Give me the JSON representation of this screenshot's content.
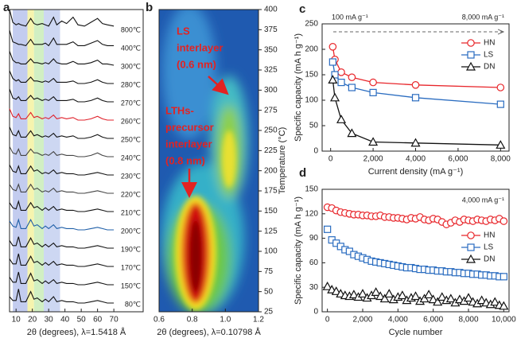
{
  "chart_data": [
    {
      "type": "waterfall",
      "label": "a",
      "xlabel": "2θ (degrees), λ=1.5418 Å",
      "xlim": [
        6,
        88
      ],
      "xticks": [
        10,
        20,
        30,
        40,
        50,
        60,
        70
      ],
      "bands": [
        {
          "range": [
            8,
            17
          ],
          "color": "#b9c3ec"
        },
        {
          "range": [
            17,
            21
          ],
          "color": "#f4f2a0"
        },
        {
          "range": [
            21,
            27
          ],
          "color": "#c9ecb8"
        },
        {
          "range": [
            27,
            37
          ],
          "color": "#c4d0f0"
        }
      ],
      "x": [
        6,
        8,
        10,
        11.5,
        13,
        16,
        19,
        21,
        23,
        26,
        28,
        30,
        33,
        35,
        38,
        41,
        45,
        48,
        52,
        56,
        60,
        63,
        66,
        70
      ],
      "series": [
        {
          "name": "800℃",
          "color": "#111111",
          "values": [
            20,
            10,
            8,
            9,
            8,
            7,
            13,
            9,
            8,
            9,
            8,
            7,
            14,
            8,
            11,
            9,
            14,
            8,
            7,
            10,
            13,
            9,
            8,
            7
          ]
        },
        {
          "name": "400℃",
          "color": "#111111",
          "values": [
            18,
            9,
            8,
            7,
            7,
            6,
            11,
            7,
            7,
            7,
            8,
            6,
            12,
            7,
            7,
            7,
            9,
            6,
            6,
            8,
            10,
            7,
            6,
            6
          ]
        },
        {
          "name": "300℃",
          "color": "#111111",
          "values": [
            16,
            9,
            7,
            7,
            6,
            6,
            10,
            7,
            7,
            6,
            7,
            6,
            10,
            7,
            6,
            6,
            8,
            6,
            6,
            7,
            9,
            6,
            6,
            5
          ]
        },
        {
          "name": "280℃",
          "color": "#111111",
          "values": [
            15,
            9,
            7,
            8,
            6,
            6,
            10,
            7,
            7,
            6,
            7,
            6,
            9,
            6,
            6,
            6,
            7,
            5,
            5,
            6,
            8,
            6,
            5,
            5
          ]
        },
        {
          "name": "270℃",
          "color": "#111111",
          "values": [
            15,
            8,
            7,
            9,
            6,
            6,
            10,
            7,
            8,
            6,
            7,
            6,
            9,
            6,
            6,
            6,
            7,
            5,
            5,
            6,
            8,
            6,
            5,
            5
          ]
        },
        {
          "name": "260℃",
          "color": "#e0202a",
          "values": [
            14,
            8,
            7,
            10,
            6,
            6,
            11,
            7,
            8,
            6,
            7,
            6,
            9,
            6,
            7,
            6,
            7,
            5,
            5,
            6,
            8,
            6,
            5,
            5
          ]
        },
        {
          "name": "250℃",
          "color": "#111111",
          "values": [
            14,
            8,
            7,
            11,
            6,
            6,
            11,
            7,
            8,
            6,
            7,
            6,
            9,
            6,
            7,
            6,
            7,
            5,
            5,
            6,
            8,
            6,
            5,
            5
          ]
        },
        {
          "name": "240℃",
          "color": "#444444",
          "values": [
            13,
            8,
            7,
            11,
            6,
            6,
            11,
            8,
            8,
            6,
            7,
            6,
            9,
            6,
            7,
            6,
            6,
            5,
            5,
            6,
            8,
            6,
            5,
            5
          ]
        },
        {
          "name": "230℃",
          "color": "#111111",
          "values": [
            13,
            8,
            7,
            12,
            6,
            6,
            12,
            8,
            9,
            6,
            7,
            6,
            9,
            6,
            7,
            6,
            6,
            5,
            5,
            6,
            7,
            6,
            5,
            5
          ]
        },
        {
          "name": "220℃",
          "color": "#444444",
          "values": [
            12,
            8,
            7,
            12,
            6,
            6,
            12,
            8,
            9,
            6,
            7,
            6,
            9,
            6,
            7,
            6,
            6,
            5,
            5,
            6,
            7,
            6,
            5,
            5
          ]
        },
        {
          "name": "210℃",
          "color": "#111111",
          "values": [
            12,
            8,
            7,
            13,
            6,
            6,
            12,
            8,
            9,
            6,
            8,
            6,
            9,
            6,
            7,
            6,
            6,
            5,
            5,
            6,
            7,
            6,
            5,
            5
          ]
        },
        {
          "name": "200℃",
          "color": "#1f5fa8",
          "values": [
            12,
            8,
            7,
            13,
            6,
            6,
            13,
            8,
            9,
            6,
            8,
            6,
            9,
            6,
            7,
            6,
            6,
            5,
            5,
            6,
            7,
            6,
            5,
            5
          ]
        },
        {
          "name": "190℃",
          "color": "#111111",
          "values": [
            11,
            7,
            7,
            14,
            6,
            6,
            13,
            8,
            9,
            6,
            8,
            6,
            9,
            6,
            7,
            6,
            6,
            5,
            5,
            6,
            7,
            6,
            5,
            5
          ]
        },
        {
          "name": "170℃",
          "color": "#111111",
          "values": [
            11,
            7,
            7,
            15,
            6,
            6,
            13,
            8,
            9,
            6,
            8,
            6,
            9,
            6,
            7,
            6,
            6,
            5,
            5,
            6,
            7,
            6,
            5,
            5
          ]
        },
        {
          "name": "150℃",
          "color": "#111111",
          "values": [
            11,
            7,
            7,
            15,
            6,
            6,
            14,
            8,
            9,
            6,
            8,
            6,
            9,
            6,
            7,
            6,
            6,
            5,
            5,
            6,
            7,
            6,
            5,
            5
          ]
        },
        {
          "name": "80℃",
          "color": "#111111",
          "values": [
            10,
            7,
            7,
            16,
            6,
            6,
            14,
            8,
            9,
            6,
            8,
            6,
            10,
            6,
            7,
            6,
            6,
            5,
            5,
            6,
            7,
            6,
            5,
            5
          ]
        }
      ]
    },
    {
      "type": "contour",
      "label": "b",
      "xlabel": "2θ (degrees), λ=0.10798 Å",
      "ylabel": "Temperature (°C)",
      "xlim": [
        0.6,
        1.2
      ],
      "xticks": [
        0.6,
        0.8,
        {
          "value": 1,
          "label": "1.0"
        },
        1.2
      ],
      "ylim": [
        25,
        400
      ],
      "yticks": [
        25,
        50,
        75,
        100,
        125,
        150,
        175,
        200,
        225,
        250,
        275,
        300,
        325,
        350,
        375,
        400
      ],
      "yaxis_side": "right",
      "annotations": [
        [
          "LS",
          "interlayer",
          "(0.6 nm)"
        ],
        [
          "LTHs-",
          "precursor",
          "interlayer",
          "(0.8 nm)"
        ]
      ]
    },
    {
      "type": "line",
      "label": "c",
      "xlabel": "Current density (mA g⁻¹)",
      "ylabel": "Specific capacity (mA h g⁻¹)",
      "xlim": [
        -400,
        8400
      ],
      "xticks": [
        0,
        {
          "value": 2000,
          "label": "2,000"
        },
        {
          "value": 4000,
          "label": "4,000"
        },
        {
          "value": 6000,
          "label": "6,000"
        },
        {
          "value": 8000,
          "label": "8,000"
        }
      ],
      "ylim": [
        0,
        250
      ],
      "yticks": [
        0,
        50,
        100,
        150,
        200,
        250
      ],
      "legend": "upper right",
      "lines": true,
      "annotations": [
        "100 mA g⁻¹",
        "8,000 mA g⁻¹"
      ],
      "x": [
        100,
        200,
        500,
        1000,
        2000,
        4000,
        8000
      ],
      "series": [
        {
          "name": "HN",
          "color": "#e8262b",
          "marker": "circle",
          "values": [
            205,
            180,
            155,
            145,
            135,
            130,
            125
          ]
        },
        {
          "name": "LS",
          "color": "#2a6cc0",
          "marker": "square",
          "values": [
            175,
            150,
            135,
            125,
            115,
            105,
            92
          ]
        },
        {
          "name": "DN",
          "color": "#111111",
          "marker": "triangle",
          "values": [
            140,
            105,
            62,
            35,
            18,
            16,
            12
          ]
        }
      ]
    },
    {
      "type": "line",
      "label": "d",
      "xlabel": "Cycle number",
      "ylabel": "Specific capacity (mA h g⁻¹)",
      "xlim": [
        -300,
        10300
      ],
      "xticks": [
        0,
        {
          "value": 2000,
          "label": "2,000"
        },
        {
          "value": 4000,
          "label": "4,000"
        },
        {
          "value": 6000,
          "label": "6,000"
        },
        {
          "value": 8000,
          "label": "8,000"
        },
        {
          "value": 10000,
          "label": "10,000"
        }
      ],
      "ylim": [
        0,
        150
      ],
      "yticks": [
        0,
        30,
        60,
        90,
        120,
        150
      ],
      "legend": "center right",
      "lines": false,
      "annotations": [
        "4,000 mA g⁻¹"
      ],
      "x": [
        0,
        250,
        500,
        750,
        1000,
        1250,
        1500,
        1750,
        2000,
        2250,
        2500,
        2750,
        3000,
        3250,
        3500,
        3750,
        4000,
        4250,
        4500,
        4750,
        5000,
        5250,
        5500,
        5750,
        6000,
        6250,
        6500,
        6750,
        7000,
        7250,
        7500,
        7750,
        8000,
        8250,
        8500,
        8750,
        9000,
        9250,
        9500,
        9750,
        10000
      ],
      "series": [
        {
          "name": "HN",
          "color": "#e8262b",
          "marker": "circle",
          "values": [
            128,
            127,
            124,
            122,
            121,
            120,
            119,
            119,
            118,
            118,
            117,
            117,
            118,
            116,
            116,
            115,
            115,
            114,
            113,
            115,
            114,
            116,
            113,
            112,
            114,
            113,
            110,
            107,
            109,
            112,
            110,
            113,
            112,
            111,
            113,
            112,
            111,
            113,
            112,
            114,
            111
          ]
        },
        {
          "name": "LS",
          "color": "#2a6cc0",
          "marker": "square",
          "values": [
            101,
            88,
            84,
            80,
            76,
            74,
            70,
            68,
            66,
            64,
            62,
            61,
            60,
            59,
            58,
            57,
            56,
            55,
            54,
            54,
            53,
            52,
            52,
            51,
            51,
            50,
            50,
            49,
            49,
            48,
            48,
            47,
            47,
            46,
            46,
            45,
            45,
            44,
            44,
            43,
            43
          ]
        },
        {
          "name": "DN",
          "color": "#111111",
          "marker": "triangle",
          "values": [
            31,
            27,
            25,
            22,
            20,
            19,
            21,
            18,
            22,
            17,
            20,
            24,
            19,
            16,
            22,
            15,
            18,
            20,
            14,
            17,
            19,
            13,
            16,
            21,
            15,
            12,
            18,
            14,
            16,
            11,
            15,
            13,
            17,
            12,
            10,
            14,
            11,
            9,
            12,
            8,
            7
          ]
        }
      ]
    }
  ]
}
